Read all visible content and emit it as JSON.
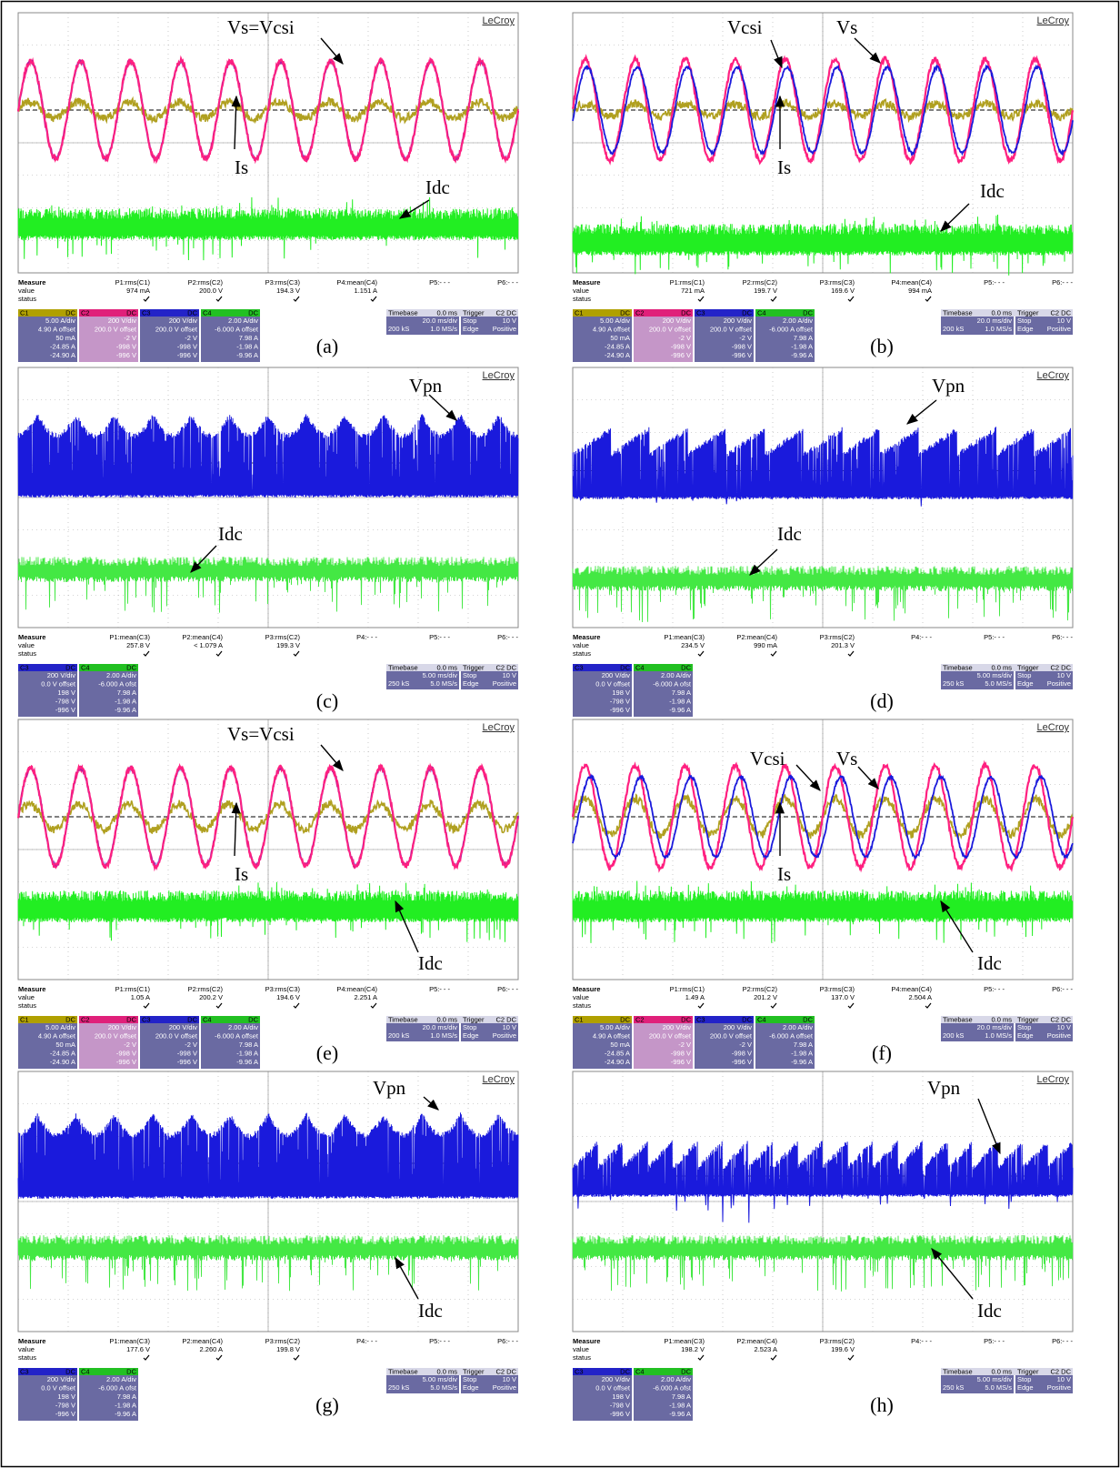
{
  "panels": [
    {
      "label": "(a)",
      "brand": "LeCroy",
      "annotations": [
        "Vs=Vcsi",
        "Is",
        "Idc"
      ],
      "measure": {
        "title": "Measure",
        "rows": [
          "value",
          "status"
        ],
        "params": [
          "P1:rms(C1)",
          "P2:rms(C2)",
          "P3:rms(C3)",
          "P4:mean(C4)",
          "P5:- - -",
          "P6:- - -"
        ],
        "values": [
          "974 mA",
          "200.0 V",
          "194.3 V",
          "1.151 A"
        ]
      },
      "channels": [
        {
          "name": "C1",
          "coupling": "DC",
          "lines": [
            "5.00 A/div",
            "4.90 A offset",
            "50 mA",
            "-24.85 A",
            "-24.90 A"
          ]
        },
        {
          "name": "C2",
          "coupling": "DC",
          "lines": [
            "200 V/div",
            "200.0 V offset",
            "-2 V",
            "-998 V",
            "-996 V"
          ]
        },
        {
          "name": "C3",
          "coupling": "DC",
          "lines": [
            "200 V/div",
            "200.0 V offset",
            "-2 V",
            "-998 V",
            "-996 V"
          ]
        },
        {
          "name": "C4",
          "coupling": "DC",
          "lines": [
            "2.00 A/div",
            "-6.000 A offset",
            "7.98 A",
            "-1.98 A",
            "-9.96 A"
          ]
        }
      ],
      "timebase": {
        "title": "Timebase",
        "delay": "0.0 ms",
        "scale": "20.0 ms/div",
        "samples": "200 kS",
        "rate": "1.0 MS/s",
        "trigger": "Trigger",
        "source": "C2 DC",
        "mode": "Stop",
        "level": "10 V",
        "type": "Edge",
        "slope": "Positive"
      }
    },
    {
      "label": "(b)",
      "brand": "LeCroy",
      "annotations": [
        "Vcsi",
        "Vs",
        "Is",
        "Idc"
      ],
      "measure": {
        "title": "Measure",
        "rows": [
          "value",
          "status"
        ],
        "params": [
          "P1:rms(C1)",
          "P2:rms(C2)",
          "P3:rms(C3)",
          "P4:mean(C4)",
          "P5:- - -",
          "P6:- - -"
        ],
        "values": [
          "721 mA",
          "199.7 V",
          "169.6 V",
          "994 mA"
        ]
      },
      "channels": [
        {
          "name": "C1",
          "coupling": "DC",
          "lines": [
            "5.00 A/div",
            "4.90 A offset",
            "50 mA",
            "-24.85 A",
            "-24.90 A"
          ]
        },
        {
          "name": "C2",
          "coupling": "DC",
          "lines": [
            "200 V/div",
            "200.0 V offset",
            "-2 V",
            "-998 V",
            "-996 V"
          ]
        },
        {
          "name": "C3",
          "coupling": "DC",
          "lines": [
            "200 V/div",
            "200.0 V offset",
            "-2 V",
            "-998 V",
            "-996 V"
          ]
        },
        {
          "name": "C4",
          "coupling": "DC",
          "lines": [
            "2.00 A/div",
            "-6.000 A offset",
            "7.98 A",
            "-1.98 A",
            "-9.96 A"
          ]
        }
      ],
      "timebase": {
        "title": "Timebase",
        "delay": "0.0 ms",
        "scale": "20.0 ms/div",
        "samples": "200 kS",
        "rate": "1.0 MS/s",
        "trigger": "Trigger",
        "source": "C2 DC",
        "mode": "Stop",
        "level": "10 V",
        "type": "Edge",
        "slope": "Positive"
      }
    },
    {
      "label": "(c)",
      "brand": "LeCroy",
      "annotations": [
        "Vpn",
        "Idc"
      ],
      "measure": {
        "title": "Measure",
        "rows": [
          "value",
          "status"
        ],
        "params": [
          "P1:mean(C3)",
          "P2:mean(C4)",
          "P3:rms(C2)",
          "P4:- - -",
          "P5:- - -",
          "P6:- - -"
        ],
        "values": [
          "257.8 V",
          "< 1.079 A",
          "199.3 V"
        ]
      },
      "channels": [
        {
          "name": "C3",
          "coupling": "DC",
          "lines": [
            "200 V/div",
            "0.0 V offset",
            "198 V",
            "-798 V",
            "-996 V"
          ]
        },
        {
          "name": "C4",
          "coupling": "DC",
          "lines": [
            "2.00 A/div",
            "-6.000 A ofst",
            "7.98 A",
            "-1.98 A",
            "-9.96 A"
          ]
        }
      ],
      "timebase": {
        "title": "Timebase",
        "delay": "0.0 ms",
        "scale": "5.00 ms/div",
        "samples": "250 kS",
        "rate": "5.0 MS/s",
        "trigger": "Trigger",
        "source": "C2 DC",
        "mode": "Stop",
        "level": "10 V",
        "type": "Edge",
        "slope": "Positive"
      }
    },
    {
      "label": "(d)",
      "brand": "LeCroy",
      "annotations": [
        "Vpn",
        "Idc"
      ],
      "measure": {
        "title": "Measure",
        "rows": [
          "value",
          "status"
        ],
        "params": [
          "P1:mean(C3)",
          "P2:mean(C4)",
          "P3:rms(C2)",
          "P4:- - -",
          "P5:- - -",
          "P6:- - -"
        ],
        "values": [
          "234.5 V",
          "990 mA",
          "201.3 V"
        ]
      },
      "channels": [
        {
          "name": "C3",
          "coupling": "DC",
          "lines": [
            "200 V/div",
            "0.0 V offset",
            "198 V",
            "-798 V",
            "-996 V"
          ]
        },
        {
          "name": "C4",
          "coupling": "DC",
          "lines": [
            "2.00 A/div",
            "-6.000 A ofst",
            "7.98 A",
            "-1.98 A",
            "-9.96 A"
          ]
        }
      ],
      "timebase": {
        "title": "Timebase",
        "delay": "0.0 ms",
        "scale": "5.00 ms/div",
        "samples": "250 kS",
        "rate": "5.0 MS/s",
        "trigger": "Trigger",
        "source": "C2 DC",
        "mode": "Stop",
        "level": "10 V",
        "type": "Edge",
        "slope": "Positive"
      }
    },
    {
      "label": "(e)",
      "brand": "LeCroy",
      "annotations": [
        "Vs=Vcsi",
        "Is",
        "Idc"
      ],
      "measure": {
        "title": "Measure",
        "rows": [
          "value",
          "status"
        ],
        "params": [
          "P1:rms(C1)",
          "P2:rms(C2)",
          "P3:rms(C3)",
          "P4:mean(C4)",
          "P5:- - -",
          "P6:- - -"
        ],
        "values": [
          "1.05 A",
          "200.2 V",
          "194.6 V",
          "2.251 A"
        ]
      },
      "channels": [
        {
          "name": "C1",
          "coupling": "DC",
          "lines": [
            "5.00 A/div",
            "4.90 A offset",
            "50 mA",
            "-24.85 A",
            "-24.90 A"
          ]
        },
        {
          "name": "C2",
          "coupling": "DC",
          "lines": [
            "200 V/div",
            "200.0 V offset",
            "-2 V",
            "-998 V",
            "-996 V"
          ]
        },
        {
          "name": "C3",
          "coupling": "DC",
          "lines": [
            "200 V/div",
            "200.0 V offset",
            "-2 V",
            "-998 V",
            "-996 V"
          ]
        },
        {
          "name": "C4",
          "coupling": "DC",
          "lines": [
            "2.00 A/div",
            "-6.000 A offset",
            "7.98 A",
            "-1.98 A",
            "-9.96 A"
          ]
        }
      ],
      "timebase": {
        "title": "Timebase",
        "delay": "0.0 ms",
        "scale": "20.0 ms/div",
        "samples": "200 kS",
        "rate": "1.0 MS/s",
        "trigger": "Trigger",
        "source": "C2 DC",
        "mode": "Stop",
        "level": "10 V",
        "type": "Edge",
        "slope": "Positive"
      }
    },
    {
      "label": "(f)",
      "brand": "LeCroy",
      "annotations": [
        "Vcsi",
        "Vs",
        "Is",
        "Idc"
      ],
      "measure": {
        "title": "Measure",
        "rows": [
          "value",
          "status"
        ],
        "params": [
          "P1:rms(C1)",
          "P2:rms(C2)",
          "P3:rms(C3)",
          "P4:mean(C4)",
          "P5:- - -",
          "P6:- - -"
        ],
        "values": [
          "1.49 A",
          "201.2 V",
          "137.0 V",
          "2.504 A"
        ]
      },
      "channels": [
        {
          "name": "C1",
          "coupling": "DC",
          "lines": [
            "5.00 A/div",
            "4.90 A offset",
            "50 mA",
            "-24.85 A",
            "-24.90 A"
          ]
        },
        {
          "name": "C2",
          "coupling": "DC",
          "lines": [
            "200 V/div",
            "200.0 V offset",
            "-2 V",
            "-998 V",
            "-996 V"
          ]
        },
        {
          "name": "C3",
          "coupling": "DC",
          "lines": [
            "200 V/div",
            "200.0 V offset",
            "-2 V",
            "-998 V",
            "-996 V"
          ]
        },
        {
          "name": "C4",
          "coupling": "DC",
          "lines": [
            "2.00 A/div",
            "-6.000 A offset",
            "7.98 A",
            "-1.98 A",
            "-9.96 A"
          ]
        }
      ],
      "timebase": {
        "title": "Timebase",
        "delay": "0.0 ms",
        "scale": "20.0 ms/div",
        "samples": "200 kS",
        "rate": "1.0 MS/s",
        "trigger": "Trigger",
        "source": "C2 DC",
        "mode": "Stop",
        "level": "10 V",
        "type": "Edge",
        "slope": "Positive"
      }
    },
    {
      "label": "(g)",
      "brand": "LeCroy",
      "annotations": [
        "Vpn",
        "Idc"
      ],
      "measure": {
        "title": "Measure",
        "rows": [
          "value",
          "status"
        ],
        "params": [
          "P1:mean(C3)",
          "P2:mean(C4)",
          "P3:rms(C2)",
          "P4:- - -",
          "P5:- - -",
          "P6:- - -"
        ],
        "values": [
          "177.6 V",
          "2.260 A",
          "199.8 V"
        ]
      },
      "channels": [
        {
          "name": "C3",
          "coupling": "DC",
          "lines": [
            "200 V/div",
            "0.0 V offset",
            "198 V",
            "-798 V",
            "-996 V"
          ]
        },
        {
          "name": "C4",
          "coupling": "DC",
          "lines": [
            "2.00 A/div",
            "-6.000 A ofst",
            "7.98 A",
            "-1.98 A",
            "-9.96 A"
          ]
        }
      ],
      "timebase": {
        "title": "Timebase",
        "delay": "0.0 ms",
        "scale": "5.00 ms/div",
        "samples": "250 kS",
        "rate": "5.0 MS/s",
        "trigger": "Trigger",
        "source": "C2 DC",
        "mode": "Stop",
        "level": "10 V",
        "type": "Edge",
        "slope": "Positive"
      }
    },
    {
      "label": "(h)",
      "brand": "LeCroy",
      "annotations": [
        "Vpn",
        "Idc"
      ],
      "measure": {
        "title": "Measure",
        "rows": [
          "value",
          "status"
        ],
        "params": [
          "P1:mean(C3)",
          "P2:mean(C4)",
          "P3:rms(C2)",
          "P4:- - -",
          "P5:- - -",
          "P6:- - -"
        ],
        "values": [
          "198.2 V",
          "2.523 A",
          "199.6 V"
        ]
      },
      "channels": [
        {
          "name": "C3",
          "coupling": "DC",
          "lines": [
            "200 V/div",
            "0.0 V offset",
            "198 V",
            "-798 V",
            "-996 V"
          ]
        },
        {
          "name": "C4",
          "coupling": "DC",
          "lines": [
            "2.00 A/div",
            "-6.000 A ofst",
            "7.98 A",
            "-1.98 A",
            "-9.96 A"
          ]
        }
      ],
      "timebase": {
        "title": "Timebase",
        "delay": "0.0 ms",
        "scale": "5.00 ms/div",
        "samples": "250 kS",
        "rate": "5.0 MS/s",
        "trigger": "Trigger",
        "source": "C2 DC",
        "mode": "Stop",
        "level": "10 V",
        "type": "Edge",
        "slope": "Positive"
      }
    }
  ]
}
